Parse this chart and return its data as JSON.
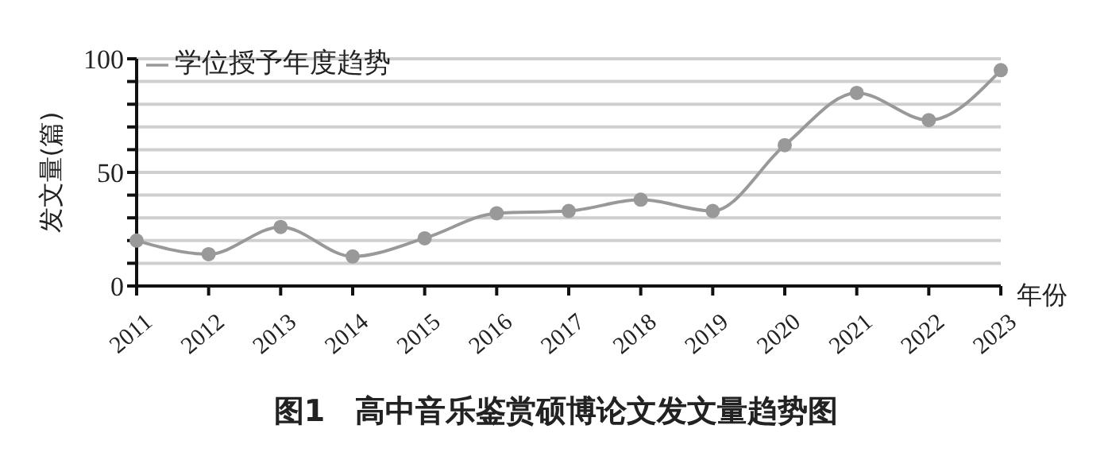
{
  "chart_data": {
    "type": "line",
    "title": "图1　高中音乐鉴赏硕博论文发文量趋势图",
    "xlabel": "年份",
    "ylabel": "发文量(篇)",
    "categories": [
      "2011",
      "2012",
      "2013",
      "2014",
      "2015",
      "2016",
      "2017",
      "2018",
      "2019",
      "2020",
      "2021",
      "2022",
      "2023"
    ],
    "series": [
      {
        "name": "学位授予年度趋势",
        "color": "#999999",
        "values": [
          20,
          14,
          26,
          13,
          21,
          32,
          33,
          38,
          33,
          62,
          85,
          73,
          95
        ]
      }
    ],
    "ylim": [
      0,
      100
    ],
    "yticks": [
      0,
      {
        "value": 10,
        "label": null
      },
      {
        "value": 20,
        "label": null
      },
      {
        "value": 30,
        "label": null
      },
      {
        "value": 40,
        "label": null
      },
      50,
      {
        "value": 60,
        "label": null
      },
      {
        "value": 70,
        "label": null
      },
      {
        "value": 80,
        "label": null
      },
      {
        "value": 90,
        "label": null
      },
      100
    ],
    "grid": "y",
    "legend": "top left",
    "marker": "circle",
    "line_style": "solid"
  }
}
